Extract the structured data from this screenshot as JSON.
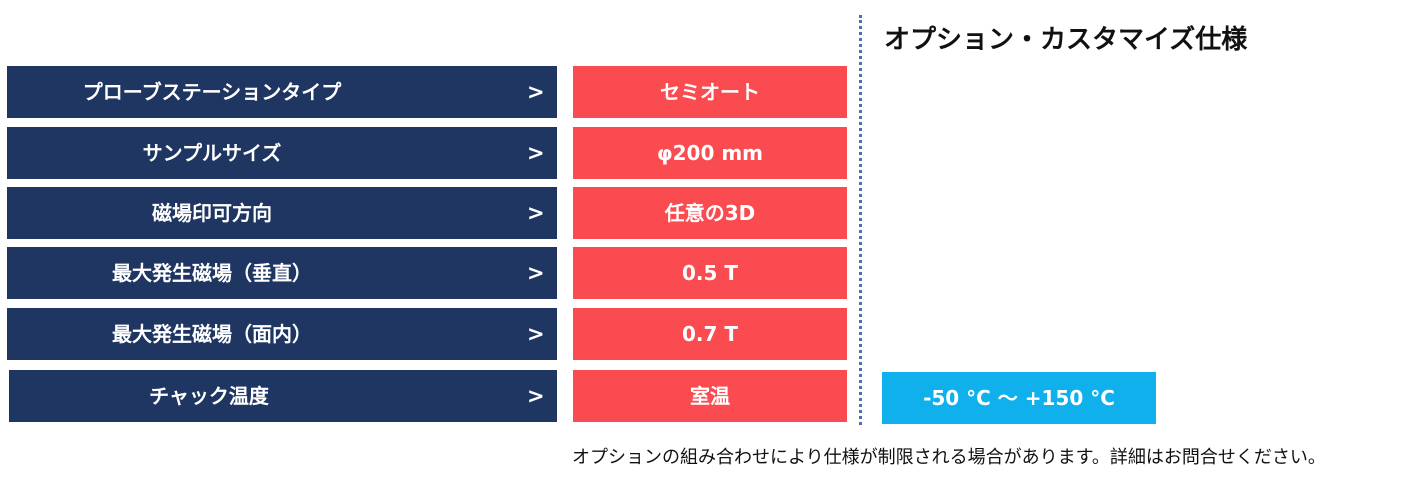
{
  "option_header": "オプション・カスタマイズ仕様",
  "rows": [
    {
      "label": "プローブステーションタイプ",
      "arrow": ">",
      "value": "セミオート"
    },
    {
      "label": "サンプルサイズ",
      "arrow": ">",
      "value": "φ200 mm"
    },
    {
      "label": "磁場印可方向",
      "arrow": ">",
      "value": "任意の3D"
    },
    {
      "label": "最大発生磁場（垂直）",
      "arrow": ">",
      "value": "0.5 T"
    },
    {
      "label": "最大発生磁場（面内）",
      "arrow": ">",
      "value": "0.7 T"
    },
    {
      "label": "チャック温度",
      "arrow": ">",
      "value": "室温"
    }
  ],
  "options": {
    "chuck_temperature": "-50 °C 〜 +150 °C"
  },
  "footnote": "オプションの組み合わせにより仕様が制限される場合があります。詳細はお問合せください。",
  "colors": {
    "label_bg": "#1f3663",
    "value_bg": "#fa4b50",
    "option_bg": "#0fb0ec",
    "divider": "#4a6fc2"
  }
}
